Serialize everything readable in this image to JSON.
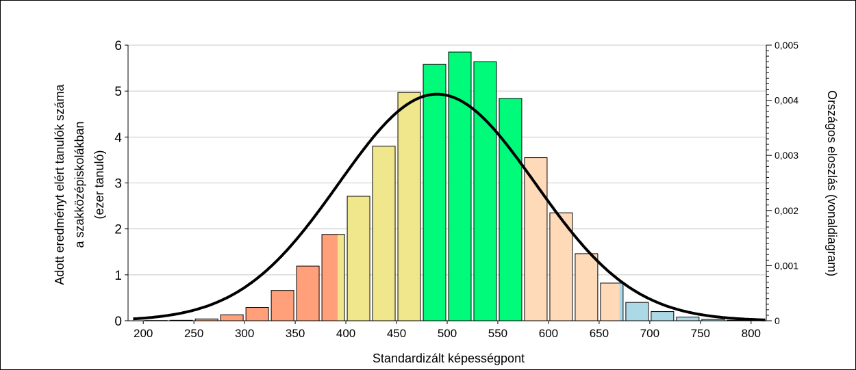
{
  "chart_data": {
    "type": "bar",
    "xlabel": "Standardizált képességpont",
    "ylabel_lines": [
      "Adott eredményt elért tanulók száma",
      "a szakközépiskolákban",
      "(ezer tanuló)"
    ],
    "y2label": "Országos eloszlás (vonaldiagram)",
    "xlim": [
      185,
      815
    ],
    "ylim": [
      0,
      6
    ],
    "y2lim": [
      0,
      0.005
    ],
    "x_ticks": [
      {
        "value": 200,
        "label": "200"
      },
      {
        "value": 250,
        "label": "250"
      },
      {
        "value": 300,
        "label": "300"
      },
      {
        "value": 350,
        "label": "350"
      },
      {
        "value": 400,
        "label": "400"
      },
      {
        "value": 450,
        "label": "450"
      },
      {
        "value": 500,
        "label": "500"
      },
      {
        "value": 550,
        "label": "550"
      },
      {
        "value": 600,
        "label": "600"
      },
      {
        "value": 650,
        "label": "650"
      },
      {
        "value": 700,
        "label": "700"
      },
      {
        "value": 750,
        "label": "750"
      },
      {
        "value": 800,
        "label": "800"
      }
    ],
    "y_ticks": [
      {
        "value": 0,
        "label": "0"
      },
      {
        "value": 1,
        "label": "1"
      },
      {
        "value": 2,
        "label": "2"
      },
      {
        "value": 3,
        "label": "3"
      },
      {
        "value": 4,
        "label": "4"
      },
      {
        "value": 5,
        "label": "5"
      },
      {
        "value": 6,
        "label": "6"
      }
    ],
    "y2_ticks": [
      {
        "value": 0,
        "label": "0"
      },
      {
        "value": 0.001,
        "label": "0,001"
      },
      {
        "value": 0.002,
        "label": "0,002"
      },
      {
        "value": 0.003,
        "label": "0,003"
      },
      {
        "value": 0.004,
        "label": "0,004"
      },
      {
        "value": 0.005,
        "label": "0,005"
      }
    ],
    "grid": true,
    "bin_width": 25,
    "bars": [
      {
        "x": 212.5,
        "value": 0.005,
        "color": "#FFA07A"
      },
      {
        "x": 237.5,
        "value": 0.01,
        "color": "#FFA07A"
      },
      {
        "x": 262.5,
        "value": 0.04,
        "color": "#FFA07A"
      },
      {
        "x": 287.5,
        "value": 0.13,
        "color": "#FFA07A"
      },
      {
        "x": 312.5,
        "value": 0.29,
        "color": "#FFA07A"
      },
      {
        "x": 337.5,
        "value": 0.66,
        "color": "#FFA07A"
      },
      {
        "x": 362.5,
        "value": 1.19,
        "color": "#FFA07A"
      },
      {
        "x": 387.5,
        "value": 1.88,
        "color": "#F0E68C",
        "split_color": "#FFA07A",
        "split_at": 392
      },
      {
        "x": 412.5,
        "value": 2.71,
        "color": "#F0E68C"
      },
      {
        "x": 437.5,
        "value": 3.8,
        "color": "#F0E68C"
      },
      {
        "x": 462.5,
        "value": 4.97,
        "color": "#F0E68C"
      },
      {
        "x": 487.5,
        "value": 5.58,
        "color": "#00FA7A"
      },
      {
        "x": 512.5,
        "value": 5.85,
        "color": "#00FA7A"
      },
      {
        "x": 537.5,
        "value": 5.64,
        "color": "#00FA7A"
      },
      {
        "x": 562.5,
        "value": 4.84,
        "color": "#00FA7A"
      },
      {
        "x": 587.5,
        "value": 3.55,
        "color": "#FFDAB9"
      },
      {
        "x": 612.5,
        "value": 2.35,
        "color": "#FFDAB9"
      },
      {
        "x": 637.5,
        "value": 1.46,
        "color": "#FFDAB9"
      },
      {
        "x": 662.5,
        "value": 0.82,
        "color": "#FFDAB9",
        "split_color": "#ADD8E6",
        "split_at": 670,
        "split_side": "right"
      },
      {
        "x": 687.5,
        "value": 0.4,
        "color": "#ADD8E6"
      },
      {
        "x": 712.5,
        "value": 0.2,
        "color": "#ADD8E6"
      },
      {
        "x": 737.5,
        "value": 0.08,
        "color": "#ADD8E6"
      },
      {
        "x": 762.5,
        "value": 0.03,
        "color": "#ADD8E6"
      },
      {
        "x": 787.5,
        "value": 0.01,
        "color": "#ADD8E6"
      }
    ],
    "curve": {
      "type": "normal",
      "mean": 490,
      "sd": 97,
      "peak_y2": 0.00411,
      "x_range": [
        190,
        815
      ]
    }
  }
}
